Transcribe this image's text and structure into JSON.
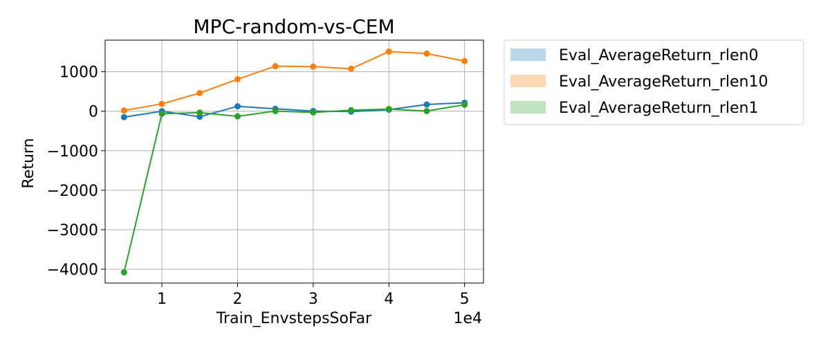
{
  "chart_data": {
    "type": "line",
    "title": "MPC-random-vs-CEM",
    "xlabel": "Train_EnvstepsSoFar",
    "ylabel": "Return",
    "x_offset_label": "1e4",
    "x": [
      5000,
      10000,
      15000,
      20000,
      25000,
      30000,
      35000,
      40000,
      45000,
      50000
    ],
    "xlim": [
      2500,
      52500
    ],
    "ylim": [
      -4350,
      1800
    ],
    "x_ticks": [
      10000,
      20000,
      30000,
      40000,
      50000
    ],
    "x_tick_labels": [
      "1",
      "2",
      "3",
      "4",
      "5"
    ],
    "y_ticks": [
      1000,
      0,
      -1000,
      -2000,
      -3000,
      -4000
    ],
    "y_tick_labels": [
      "1000",
      "0",
      "−1000",
      "−2000",
      "−3000",
      "−4000"
    ],
    "grid": true,
    "legend_position": "outside-right-top",
    "series": [
      {
        "name": "Eval_AverageReturn_rlen0",
        "color": "#1f77b4",
        "values": [
          -150,
          0,
          -140,
          125,
          60,
          5,
          -10,
          40,
          170,
          215
        ]
      },
      {
        "name": "Eval_AverageReturn_rlen10",
        "color": "#ff7f0e",
        "values": [
          20,
          185,
          460,
          810,
          1140,
          1130,
          1075,
          1510,
          1460,
          1270
        ]
      },
      {
        "name": "Eval_AverageReturn_rlen1",
        "color": "#2ca02c",
        "values": [
          -4080,
          -65,
          -35,
          -130,
          5,
          -30,
          25,
          55,
          5,
          165
        ]
      }
    ]
  }
}
